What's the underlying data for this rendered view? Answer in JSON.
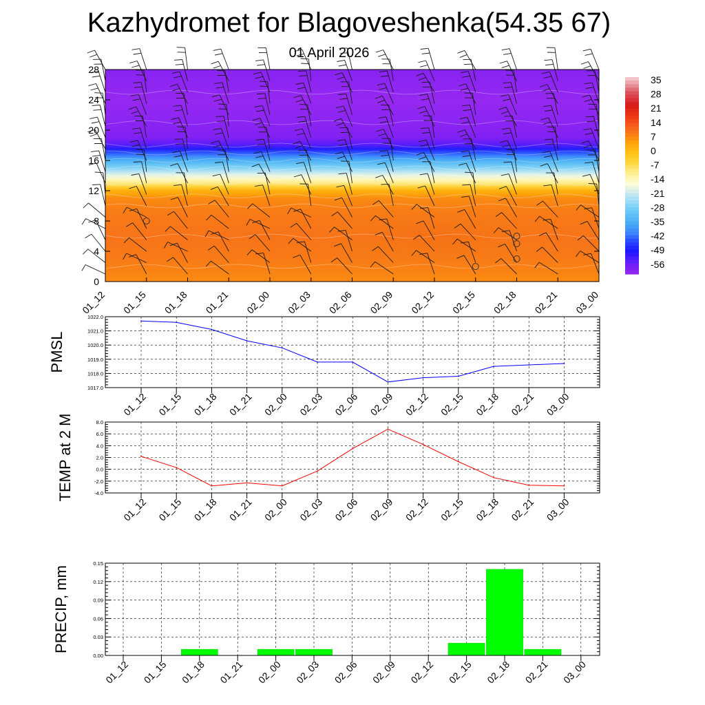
{
  "page": {
    "title": "Kazhydromet for Blagoveshenka(54.35 67)",
    "subtitle": "01 April 2026"
  },
  "time_labels": [
    "01_12",
    "01_15",
    "01_18",
    "01_21",
    "02_00",
    "02_03",
    "02_06",
    "02_09",
    "02_12",
    "02_15",
    "02_18",
    "02_21",
    "03_00"
  ],
  "colors": {
    "pmsl_line": "#0000ff",
    "temp_line": "#ff0000",
    "precip_bar": "#00ff00",
    "grid": "#000000"
  },
  "chart_data": [
    {
      "type": "heatmap",
      "name": "vertical-cross-section",
      "x_categories": [
        "01_12",
        "01_15",
        "01_18",
        "01_21",
        "02_00",
        "02_03",
        "02_06",
        "02_09",
        "02_12",
        "02_15",
        "02_18",
        "02_21",
        "03_00"
      ],
      "yticks": [
        0,
        4,
        8,
        12,
        16,
        20,
        24,
        28
      ],
      "ylim": [
        0,
        28
      ],
      "colorbar": {
        "labels": [
          "35",
          "28",
          "21",
          "14",
          "7",
          "0",
          "-7",
          "-14",
          "-21",
          "-28",
          "-35",
          "-42",
          "-49",
          "-56"
        ],
        "range": [
          -60,
          38
        ]
      },
      "temperature_profile": {
        "heights": [
          0,
          3,
          6,
          9,
          11,
          12,
          13,
          14,
          15,
          16,
          17,
          18,
          19,
          20,
          24,
          28
        ],
        "values": [
          8,
          10,
          11,
          10,
          8,
          3,
          -9,
          -17,
          -26,
          -34,
          -43,
          -53,
          -57,
          -58,
          -60,
          -58
        ]
      },
      "barbs": "wind barbs at each time and level",
      "markers": [
        {
          "x": "01_15",
          "height": 8
        },
        {
          "x": "02_15",
          "height": 2
        },
        {
          "x": "02_18",
          "height": 3
        },
        {
          "x": "02_18",
          "height": 5
        },
        {
          "x": "02_18",
          "height": 6
        }
      ]
    },
    {
      "type": "line",
      "name": "pmsl",
      "ylabel": "PMSL",
      "x": [
        "01_12",
        "01_15",
        "01_18",
        "01_21",
        "02_00",
        "02_03",
        "02_06",
        "02_09",
        "02_12",
        "02_15",
        "02_18",
        "02_21",
        "03_00"
      ],
      "values": [
        1021.7,
        1021.6,
        1021.1,
        1020.3,
        1019.8,
        1018.8,
        1018.8,
        1017.4,
        1017.7,
        1017.8,
        1018.5,
        1018.6,
        1018.7
      ],
      "ylim": [
        1017.0,
        1022.0
      ],
      "yticks": [
        1017.0,
        1018.0,
        1019.0,
        1020.0,
        1021.0,
        1022.0
      ],
      "ytick_labels": [
        "1017.0",
        "1018.0",
        "1019.0",
        "1020.0",
        "1021.0",
        "1022.0"
      ]
    },
    {
      "type": "line",
      "name": "temp2m",
      "ylabel": "TEMP at 2 M",
      "x": [
        "01_12",
        "01_15",
        "01_18",
        "01_21",
        "02_00",
        "02_03",
        "02_06",
        "02_09",
        "02_12",
        "02_15",
        "02_18",
        "02_21",
        "03_00"
      ],
      "values": [
        2.2,
        0.3,
        -2.8,
        -2.3,
        -2.8,
        -0.3,
        3.5,
        6.8,
        4.2,
        1.3,
        -1.4,
        -2.7,
        -2.8
      ],
      "ylim": [
        -4.0,
        8.0
      ],
      "yticks": [
        -4.0,
        -2.0,
        0.0,
        2.0,
        4.0,
        6.0,
        8.0
      ],
      "ytick_labels": [
        "-4.0",
        "-2.0",
        "0.0",
        "2.0",
        "4.0",
        "6.0",
        "8.0"
      ]
    },
    {
      "type": "bar",
      "name": "precip",
      "ylabel": "PRECIP, mm",
      "categories": [
        "01_12",
        "01_15",
        "01_18",
        "01_21",
        "02_00",
        "02_03",
        "02_06",
        "02_09",
        "02_12",
        "02_15",
        "02_18",
        "02_21",
        "03_00"
      ],
      "values": [
        0,
        0,
        0.01,
        0,
        0.01,
        0.01,
        0,
        0,
        0,
        0.02,
        0.14,
        0.01,
        0
      ],
      "ylim": [
        0,
        0.15
      ],
      "yticks": [
        0,
        0.03,
        0.06,
        0.09,
        0.12,
        0.15
      ],
      "ytick_labels": [
        "0.00",
        "0.03",
        "0.06",
        "0.09",
        "0.12",
        "0.15"
      ]
    }
  ]
}
